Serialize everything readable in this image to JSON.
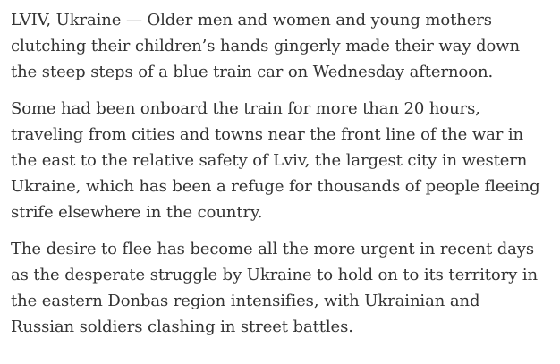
{
  "article": {
    "paragraphs": [
      "LVIV, Ukraine — Older men and women and young mothers clutching their children’s hands gingerly made their way down the steep steps of a blue train car on Wednesday afternoon.",
      "Some had been onboard the train for more than 20 hours, traveling from cities and towns near the front line of the war in the east to the relative safety of Lviv, the largest city in western Ukraine, which has been a refuge for thousands of people fleeing strife elsewhere in the country.",
      "The desire to flee has become all the more urgent in recent days as the desperate struggle by Ukraine to hold on to its territory in the eastern Donbas region intensifies, with Ukrainian and Russian soldiers clashing in street battles."
    ]
  },
  "colors": {
    "text": "#333333",
    "background": "#ffffff"
  }
}
